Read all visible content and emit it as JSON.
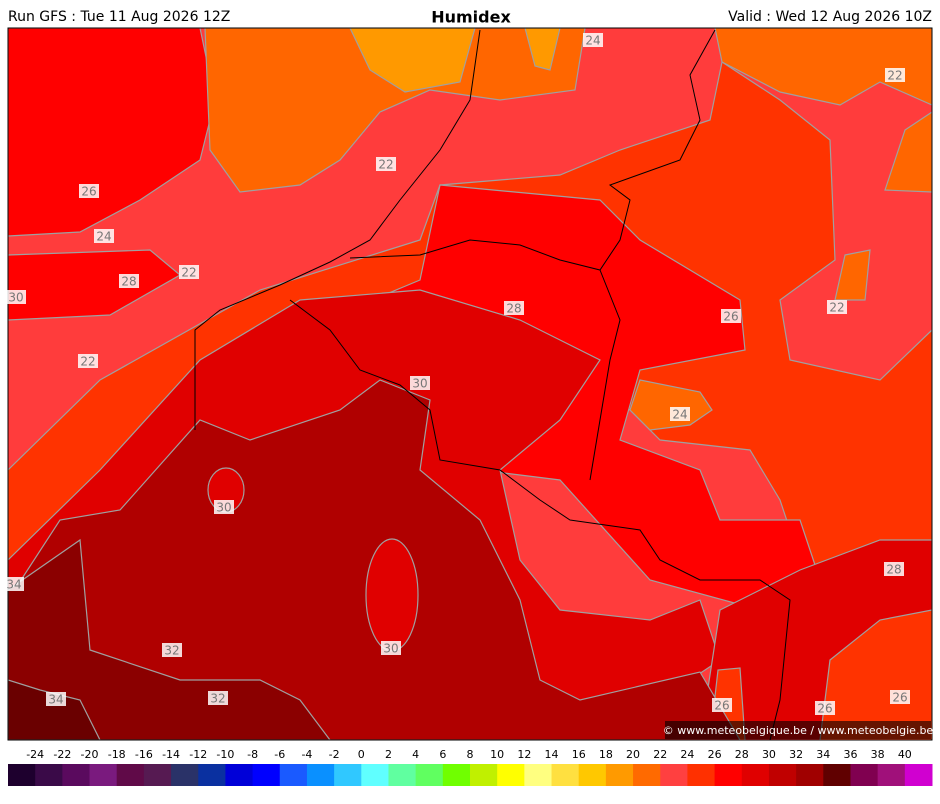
{
  "header": {
    "run": "Run GFS : Tue 11 Aug 2026 12Z",
    "title": "Humidex",
    "valid": "Valid : Wed 12 Aug 2026 10Z"
  },
  "map": {
    "contour_labels": [
      24,
      22,
      22,
      26,
      24,
      22,
      28,
      30,
      28,
      26,
      22,
      22,
      30,
      24,
      30,
      28,
      34,
      32,
      30,
      32,
      34,
      26,
      26,
      26
    ],
    "credit": "© www.meteobelgique.be / www.meteobelgie.be"
  },
  "colorbar": {
    "ticks": [
      -24,
      -22,
      -20,
      -18,
      -16,
      -14,
      -12,
      -10,
      -8,
      -6,
      -4,
      -2,
      0,
      2,
      4,
      6,
      8,
      10,
      12,
      14,
      16,
      18,
      20,
      22,
      24,
      26,
      28,
      30,
      32,
      34,
      36,
      38,
      40
    ],
    "colors": [
      "#1e002e",
      "#3a0a48",
      "#5a0a5e",
      "#7a1a7e",
      "#600a48",
      "#561a52",
      "#2a3268",
      "#0a30a0",
      "#0000d8",
      "#0000ff",
      "#1a5aff",
      "#0a90ff",
      "#30c8ff",
      "#60ffff",
      "#60ffa0",
      "#60ff60",
      "#70ff00",
      "#c0f000",
      "#ffff00",
      "#ffff80",
      "#ffe040",
      "#ffc800",
      "#ff9a00",
      "#ff6a00",
      "#ff4040",
      "#ff3000",
      "#ff0000",
      "#e00000",
      "#c00000",
      "#a00000",
      "#600000",
      "#800050",
      "#a0107a",
      "#d000d0"
    ]
  }
}
